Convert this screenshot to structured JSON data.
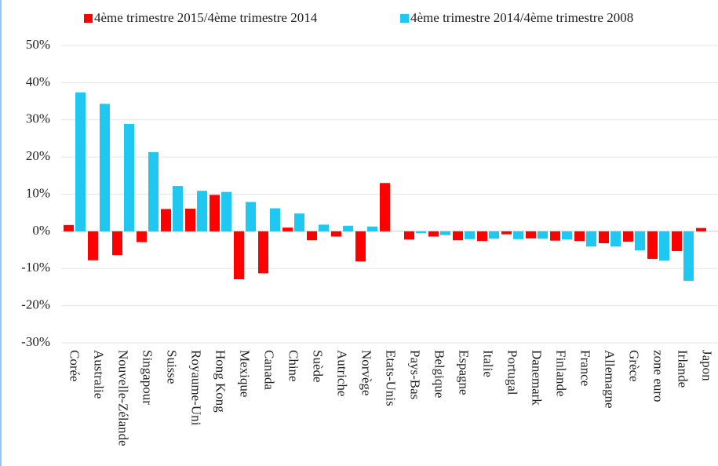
{
  "chart_data": {
    "type": "bar",
    "categories": [
      "Corée",
      "Australie",
      "Nouvelle-Zélande",
      "Singapour",
      "Suisse",
      "Royaume-Uni",
      "Hong Kong",
      "Mexique",
      "Canada",
      "Chine",
      "Suède",
      "Autriche",
      "Norvège",
      "Etats-Unis",
      "Pays-Bas",
      "Belgique",
      "Espagne",
      "Italie",
      "Portugal",
      "Danemark",
      "Finlande",
      "France",
      "Allemagne",
      "Grèce",
      "zone euro",
      "Irlande",
      "Japon"
    ],
    "series": [
      {
        "name": "4ème trimestre 2015/4ème trimestre 2014",
        "color": "#ff0000",
        "values": [
          1.7,
          -7.8,
          -6.4,
          -2.9,
          6.0,
          6.1,
          9.8,
          -12.9,
          -11.3,
          1.0,
          -2.4,
          -1.4,
          -8.1,
          13.0,
          -2.2,
          -1.4,
          -2.4,
          -2.6,
          -0.8,
          -1.9,
          -2.5,
          -2.6,
          -3.2,
          -2.8,
          -7.4,
          -5.3,
          0.9
        ]
      },
      {
        "name": "4ème trimestre 2014/4ème trimestre 2008",
        "color": "#1ec8f0",
        "values": [
          37.4,
          34.3,
          28.9,
          21.3,
          12.2,
          10.9,
          10.6,
          7.9,
          6.2,
          4.8,
          1.8,
          1.5,
          1.3,
          null,
          -0.5,
          -1.0,
          -2.1,
          -2.0,
          -2.1,
          -2.0,
          -2.2,
          -4.1,
          -4.1,
          -5.1,
          -7.9,
          -13.3,
          null
        ]
      }
    ],
    "ylim": [
      -30,
      50
    ],
    "yticks": [
      {
        "value": -30,
        "label": "-30%"
      },
      {
        "value": -20,
        "label": "-20%"
      },
      {
        "value": -10,
        "label": "-10%"
      },
      {
        "value": 0,
        "label": "0%"
      },
      {
        "value": 10,
        "label": "10%"
      },
      {
        "value": 20,
        "label": "20%"
      },
      {
        "value": 30,
        "label": "30%"
      },
      {
        "value": 40,
        "label": "40%"
      },
      {
        "value": 50,
        "label": "50%"
      }
    ],
    "grid": true,
    "legend": "top"
  }
}
